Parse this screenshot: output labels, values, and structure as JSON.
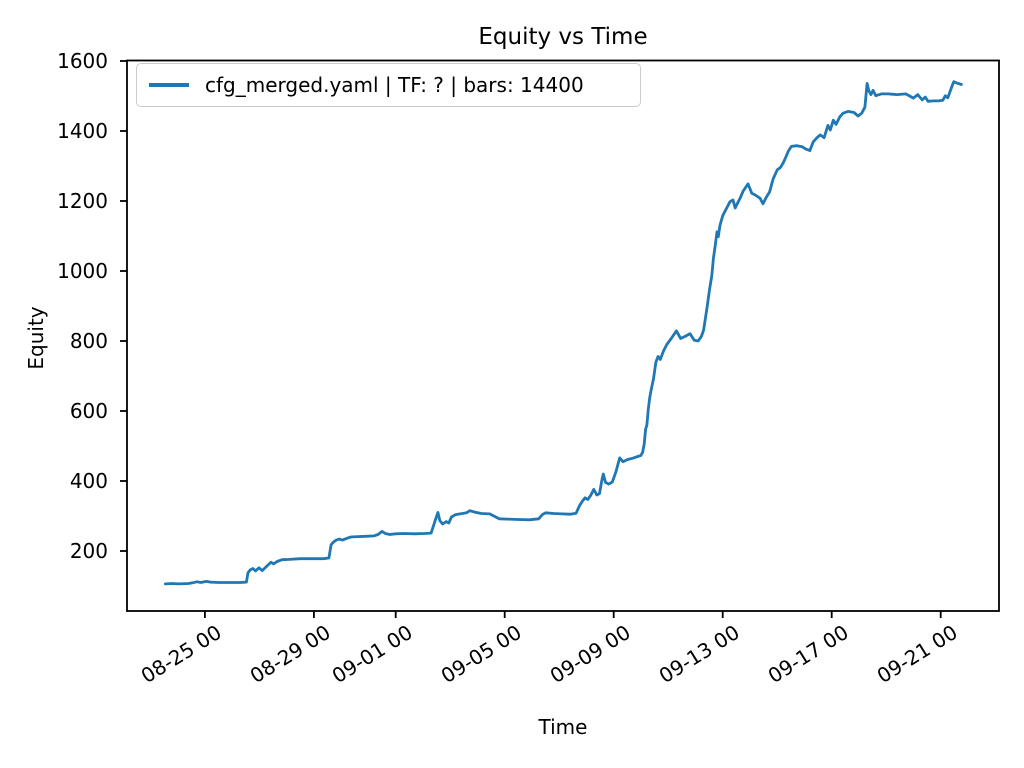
{
  "figure": {
    "background": "#ffffff"
  },
  "chart_data": {
    "type": "line",
    "title": "Equity vs Time",
    "xlabel": "Time",
    "ylabel": "Equity",
    "grid": false,
    "legend": {
      "position": "upper-left",
      "entries": [
        {
          "label": "cfg_merged.yaml | TF: ? | bars: 14400",
          "color": "#1f77b4"
        }
      ]
    },
    "x_axis": {
      "unit": "days relative to 08-25 00:00",
      "domain": [
        -2.86,
        29.14
      ],
      "tick_rotation_deg": 32,
      "ticks": [
        {
          "d": 0,
          "label": "08-25 00"
        },
        {
          "d": 4,
          "label": "08-29 00"
        },
        {
          "d": 7,
          "label": "09-01 00"
        },
        {
          "d": 11,
          "label": "09-05 00"
        },
        {
          "d": 15,
          "label": "09-09 00"
        },
        {
          "d": 19,
          "label": "09-13 00"
        },
        {
          "d": 23,
          "label": "09-17 00"
        },
        {
          "d": 27,
          "label": "09-21 00"
        }
      ]
    },
    "y_axis": {
      "domain": [
        28.5,
        1601.5
      ],
      "ticks": [
        200,
        400,
        600,
        800,
        1000,
        1200,
        1400,
        1600
      ]
    },
    "series": [
      {
        "name": "cfg_merged.yaml | TF: ? | bars: 14400",
        "color": "#1f77b4",
        "linewidth": 2.8,
        "points": [
          [
            -1.45,
            106
          ],
          [
            -1.2,
            107
          ],
          [
            -0.95,
            106
          ],
          [
            -0.6,
            107
          ],
          [
            -0.45,
            109
          ],
          [
            -0.3,
            112
          ],
          [
            -0.15,
            110
          ],
          [
            0.05,
            113
          ],
          [
            0.2,
            111
          ],
          [
            0.5,
            110
          ],
          [
            0.9,
            110
          ],
          [
            1.3,
            110
          ],
          [
            1.52,
            111
          ],
          [
            1.58,
            138
          ],
          [
            1.66,
            146
          ],
          [
            1.76,
            150
          ],
          [
            1.86,
            143
          ],
          [
            1.98,
            152
          ],
          [
            2.1,
            144
          ],
          [
            2.25,
            155
          ],
          [
            2.42,
            168
          ],
          [
            2.52,
            163
          ],
          [
            2.65,
            170
          ],
          [
            2.83,
            175
          ],
          [
            3.1,
            176
          ],
          [
            3.5,
            178
          ],
          [
            3.95,
            178
          ],
          [
            4.35,
            178
          ],
          [
            4.55,
            180
          ],
          [
            4.63,
            218
          ],
          [
            4.72,
            226
          ],
          [
            4.82,
            231
          ],
          [
            4.93,
            234
          ],
          [
            5.05,
            231
          ],
          [
            5.2,
            236
          ],
          [
            5.35,
            240
          ],
          [
            5.6,
            241
          ],
          [
            5.9,
            242
          ],
          [
            6.2,
            243
          ],
          [
            6.35,
            247
          ],
          [
            6.5,
            256
          ],
          [
            6.62,
            250
          ],
          [
            6.78,
            247
          ],
          [
            7.0,
            249
          ],
          [
            7.3,
            250
          ],
          [
            7.7,
            249
          ],
          [
            8.05,
            250
          ],
          [
            8.3,
            251
          ],
          [
            8.48,
            294
          ],
          [
            8.55,
            310
          ],
          [
            8.62,
            287
          ],
          [
            8.72,
            277
          ],
          [
            8.85,
            284
          ],
          [
            8.95,
            280
          ],
          [
            9.05,
            297
          ],
          [
            9.2,
            304
          ],
          [
            9.45,
            307
          ],
          [
            9.6,
            309
          ],
          [
            9.72,
            315
          ],
          [
            9.9,
            311
          ],
          [
            10.15,
            307
          ],
          [
            10.45,
            306
          ],
          [
            10.62,
            299
          ],
          [
            10.8,
            292
          ],
          [
            11.1,
            291
          ],
          [
            11.5,
            290
          ],
          [
            11.9,
            289
          ],
          [
            12.25,
            292
          ],
          [
            12.38,
            304
          ],
          [
            12.5,
            309
          ],
          [
            12.8,
            307
          ],
          [
            13.1,
            306
          ],
          [
            13.4,
            305
          ],
          [
            13.62,
            308
          ],
          [
            13.75,
            330
          ],
          [
            13.85,
            342
          ],
          [
            13.95,
            352
          ],
          [
            14.05,
            347
          ],
          [
            14.15,
            358
          ],
          [
            14.27,
            376
          ],
          [
            14.38,
            360
          ],
          [
            14.48,
            364
          ],
          [
            14.56,
            400
          ],
          [
            14.62,
            420
          ],
          [
            14.7,
            396
          ],
          [
            14.82,
            391
          ],
          [
            14.95,
            397
          ],
          [
            15.08,
            426
          ],
          [
            15.22,
            466
          ],
          [
            15.34,
            455
          ],
          [
            15.5,
            461
          ],
          [
            15.7,
            465
          ],
          [
            15.88,
            470
          ],
          [
            16.0,
            473
          ],
          [
            16.06,
            482
          ],
          [
            16.12,
            505
          ],
          [
            16.17,
            548
          ],
          [
            16.22,
            560
          ],
          [
            16.27,
            605
          ],
          [
            16.32,
            638
          ],
          [
            16.38,
            662
          ],
          [
            16.46,
            692
          ],
          [
            16.55,
            740
          ],
          [
            16.63,
            756
          ],
          [
            16.71,
            747
          ],
          [
            16.83,
            772
          ],
          [
            16.95,
            790
          ],
          [
            17.1,
            806
          ],
          [
            17.3,
            829
          ],
          [
            17.46,
            807
          ],
          [
            17.62,
            813
          ],
          [
            17.8,
            821
          ],
          [
            17.96,
            802
          ],
          [
            18.1,
            800
          ],
          [
            18.22,
            813
          ],
          [
            18.3,
            831
          ],
          [
            18.42,
            893
          ],
          [
            18.52,
            948
          ],
          [
            18.6,
            987
          ],
          [
            18.66,
            1036
          ],
          [
            18.73,
            1074
          ],
          [
            18.79,
            1112
          ],
          [
            18.84,
            1098
          ],
          [
            18.9,
            1131
          ],
          [
            19.0,
            1158
          ],
          [
            19.1,
            1173
          ],
          [
            19.27,
            1198
          ],
          [
            19.38,
            1203
          ],
          [
            19.46,
            1180
          ],
          [
            19.56,
            1196
          ],
          [
            19.64,
            1208
          ],
          [
            19.75,
            1228
          ],
          [
            19.93,
            1249
          ],
          [
            20.07,
            1222
          ],
          [
            20.2,
            1217
          ],
          [
            20.37,
            1208
          ],
          [
            20.48,
            1192
          ],
          [
            20.6,
            1211
          ],
          [
            20.72,
            1226
          ],
          [
            20.85,
            1263
          ],
          [
            21.0,
            1289
          ],
          [
            21.12,
            1296
          ],
          [
            21.22,
            1309
          ],
          [
            21.32,
            1326
          ],
          [
            21.42,
            1344
          ],
          [
            21.52,
            1356
          ],
          [
            21.72,
            1358
          ],
          [
            21.92,
            1355
          ],
          [
            22.06,
            1348
          ],
          [
            22.2,
            1344
          ],
          [
            22.32,
            1369
          ],
          [
            22.46,
            1381
          ],
          [
            22.58,
            1389
          ],
          [
            22.72,
            1381
          ],
          [
            22.86,
            1416
          ],
          [
            22.95,
            1403
          ],
          [
            23.06,
            1431
          ],
          [
            23.16,
            1419
          ],
          [
            23.3,
            1441
          ],
          [
            23.42,
            1451
          ],
          [
            23.6,
            1456
          ],
          [
            23.82,
            1453
          ],
          [
            23.97,
            1443
          ],
          [
            24.1,
            1451
          ],
          [
            24.22,
            1468
          ],
          [
            24.3,
            1536
          ],
          [
            24.36,
            1516
          ],
          [
            24.44,
            1504
          ],
          [
            24.52,
            1516
          ],
          [
            24.62,
            1501
          ],
          [
            24.82,
            1506
          ],
          [
            25.1,
            1506
          ],
          [
            25.4,
            1504
          ],
          [
            25.72,
            1506
          ],
          [
            26.0,
            1494
          ],
          [
            26.16,
            1504
          ],
          [
            26.32,
            1489
          ],
          [
            26.43,
            1497
          ],
          [
            26.54,
            1485
          ],
          [
            26.72,
            1486
          ],
          [
            26.92,
            1486
          ],
          [
            27.08,
            1488
          ],
          [
            27.17,
            1501
          ],
          [
            27.26,
            1495
          ],
          [
            27.42,
            1529
          ],
          [
            27.48,
            1541
          ],
          [
            27.6,
            1537
          ],
          [
            27.76,
            1533
          ]
        ]
      }
    ]
  }
}
